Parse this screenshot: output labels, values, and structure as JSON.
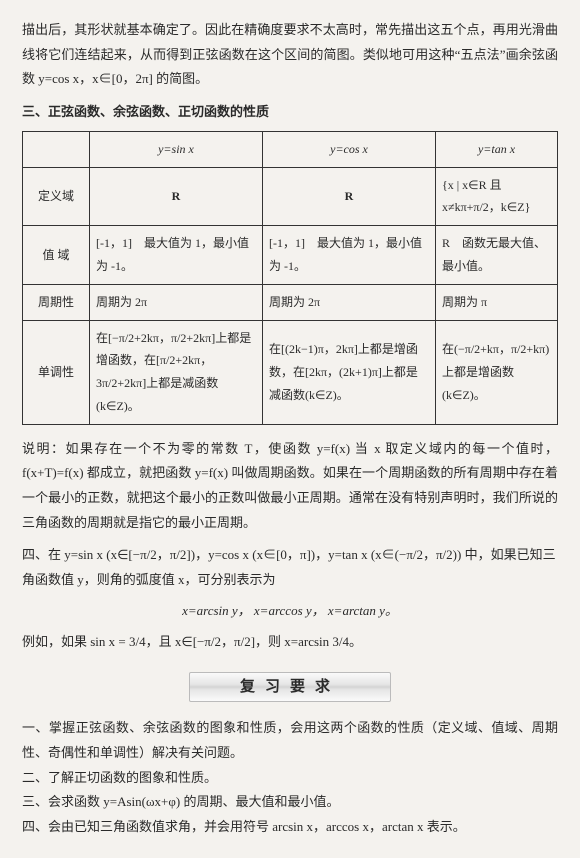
{
  "intro": "描出后，其形状就基本确定了。因此在精确度要求不太高时，常先描出这五个点，再用光滑曲线将它们连结起来，从而得到正弦函数在这个区间的简图。类似地可用这种“五点法”画余弦函数 y=cos x，x∈[0，2π] 的简图。",
  "heading1": "三、正弦函数、余弦函数、正切函数的性质",
  "table": {
    "corner": "",
    "cols": [
      "y=sin x",
      "y=cos x",
      "y=tan x"
    ],
    "rows": [
      {
        "label": "定义域",
        "c1": "R",
        "c2": "R",
        "c3": "{x | x∈R 且 x≠kπ+π/2，k∈Z}"
      },
      {
        "label": "值 域",
        "c1": "[-1，1]　最大值为 1，最小值为 -1。",
        "c2": "[-1，1]　最大值为 1，最小值为 -1。",
        "c3": "R　函数无最大值、最小值。"
      },
      {
        "label": "周期性",
        "c1": "周期为 2π",
        "c2": "周期为 2π",
        "c3": "周期为 π"
      },
      {
        "label": "单调性",
        "c1": "在[−π/2+2kπ，π/2+2kπ]上都是增函数，在[π/2+2kπ，3π/2+2kπ]上都是减函数(k∈Z)。",
        "c2": "在[(2k−1)π，2kπ]上都是增函数，在[2kπ，(2k+1)π]上都是减函数(k∈Z)。",
        "c3": "在(−π/2+kπ，π/2+kπ)上都是增函数(k∈Z)。"
      }
    ]
  },
  "explain": "说明：如果存在一个不为零的常数 T，使函数 y=f(x) 当 x 取定义域内的每一个值时，f(x+T)=f(x) 都成立，就把函数 y=f(x) 叫做周期函数。如果在一个周期函数的所有周期中存在着一个最小的正数，就把这个最小的正数叫做最小正周期。通常在没有特别声明时，我们所说的三角函数的周期就是指它的最小正周期。",
  "heading2": "四、在 y=sin x (x∈[−π/2，π/2])，y=cos x (x∈[0，π])，y=tan x (x∈(−π/2，π/2)) 中，如果已知三角函数值 y，则角的弧度值 x，可分别表示为",
  "eq1": "x=arcsin y，  x=arccos y，  x=arctan y。",
  "example": "例如，如果 sin x = 3/4，且 x∈[−π/2，π/2]，则 x=arcsin 3/4。",
  "banner": "复习要求",
  "req1": "一、掌握正弦函数、余弦函数的图象和性质，会用这两个函数的性质（定义域、值域、周期性、奇偶性和单调性）解决有关问题。",
  "req2": "二、了解正切函数的图象和性质。",
  "req3": "三、会求函数 y=Asin(ωx+φ) 的周期、最大值和最小值。",
  "req4": "四、会由已知三角函数值求角，并会用符号 arcsin x，arccos x，arctan x 表示。"
}
